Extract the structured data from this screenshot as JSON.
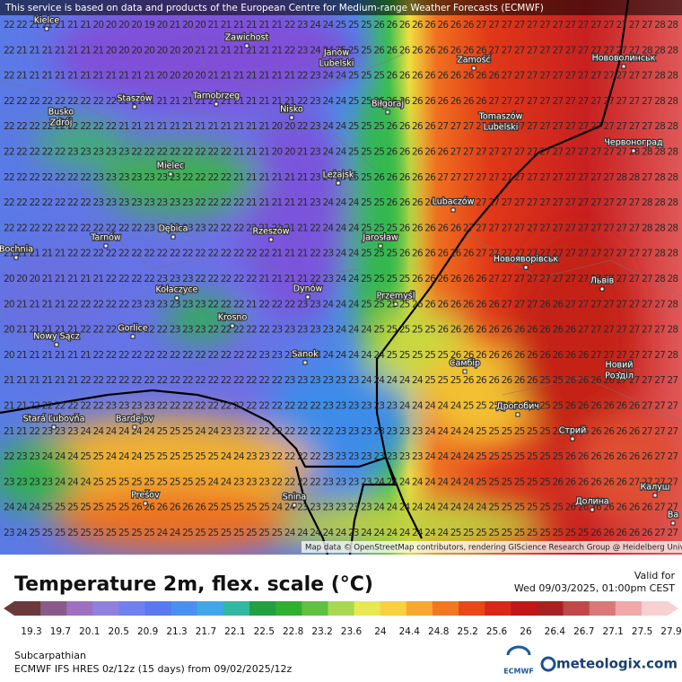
{
  "header": {
    "notice": "This service is based on data and products of the European Centre for Medium-range Weather Forecasts (ECMWF)"
  },
  "grid": {
    "rows": [
      "22 22 21 21 21 21 21 20 20 20 20 19 20 21 20 20 21 21 21 21 21 21 22 23 24 24 25 25 25 26 26 26 26 26 26 26 26 27 27 27 27 27 27 27 27 27 27 27 27 27 27 28 28",
      "22 21 21 21 21 21 21 21 20 20 20 20 20 20 20 21 21 21 21 21 21 21 22 23 24 24 25 25 25 26 26 26 26 26 26 26 26 26 27 27 27 27 27 27 27 27 27 27 27 27 28 28 28",
      "22 21 21 21 21 21 21 21 21 21 21 21 20 20 20 20 21 21 21 21 21 21 21 22 23 24 24 25 25 25 26 26 26 26 26 26 26 26 26 27 27 27 27 27 27 27 27 27 27 27 27 28 28",
      "22 22 22 22 22 22 22 22 22 22 21 21 21 21 21 21 21 21 21 21 21 21 21 22 23 24 24 25 25 26 26 26 26 26 26 26 26 26 27 27 27 27 27 27 27 27 27 27 27 27 27 28 28",
      "22 22 22 22 22 22 22 22 22 21 21 21 21 21 21 21 21 21 21 21 21 20 20 22 23 24 24 25 25 25 26 26 26 26 27 27 27 27 27 27 27 27 27 27 27 27 27 27 27 27 27 28 28",
      "22 22 22 22 22 23 23 23 23 23 22 22 22 22 22 22 22 22 21 21 21 20 20 21 23 24 24 25 25 25 26 26 26 26 26 27 27 27 27 27 27 27 27 27 27 27 27 27 27 28 28 28 28",
      "22 22 22 22 22 22 22 23 23 23 23 23 23 23 22 22 22 22 21 21 21 21 21 21 23 24 24 25 25 26 26 26 26 26 27 27 27 27 27 27 27 27 27 27 27 27 27 27 28 28 27 28 28",
      "22 22 22 22 22 22 22 23 23 23 23 23 23 23 23 22 22 22 22 21 21 21 21 21 23 24 24 24 25 25 26 26 26 26 26 27 27 27 27 27 27 27 27 27 27 27 27 27 27 27 28 28 28",
      "22 22 22 22 22 22 22 22 22 22 22 23 23 23 23 23 22 22 22 22 21 21 21 21 22 24 24 24 25 25 25 26 26 26 26 26 27 27 27 27 27 27 27 27 27 27 27 27 27 27 28 28 28",
      "21 21 21 21 21 22 22 22 22 22 22 22 22 22 22 22 22 22 22 22 22 21 21 21 22 23 24 24 25 25 25 26 26 26 26 26 26 27 27 27 27 27 27 27 27 27 27 27 27 27 27 28 28",
      "20 20 20 21 21 21 21 21 22 22 22 22 23 23 23 22 22 22 22 22 21 21 21 21 22 23 24 24 25 25 25 25 26 26 26 26 26 26 27 27 27 27 27 27 27 27 27 27 27 27 27 28 28",
      "20 21 21 21 21 22 22 22 22 22 23 23 23 23 23 23 22 22 22 21 22 22 22 23 23 24 24 24 25 25 25 25 26 26 26 26 26 26 26 27 27 27 26 26 27 27 27 27 27 27 27 27 28",
      "20 21 21 21 21 21 22 22 22 22 22 22 22 23 23 23 22 22 22 22 22 23 23 23 23 23 24 24 24 25 25 25 25 25 26 26 26 26 26 26 26 26 26 26 26 27 27 27 27 27 27 27 28",
      "20 21 21 21 21 21 21 22 22 22 22 22 22 22 22 22 22 22 22 22 23 23 23 23 23 24 24 24 24 24 25 25 25 25 25 26 26 26 26 26 26 26 26 26 26 26 27 27 27 27 27 27 28",
      "21 21 21 21 21 21 22 22 22 22 22 22 22 22 22 22 22 22 22 22 22 22 23 23 23 23 23 23 24 24 24 24 24 25 25 25 26 26 26 26 26 26 25 25 26 26 26 26 27 27 27 27 27",
      "21 21 22 22 22 22 22 22 23 23 23 23 22 22 22 22 22 22 22 22 22 22 22 22 22 23 23 23 23 23 23 24 24 24 24 24 25 25 25 25 26 26 25 25 26 26 26 26 26 26 27 27 27",
      "21 21 22 23 23 23 24 24 24 24 24 24 25 25 25 24 24 23 23 22 22 22 22 22 22 22 23 23 23 23 23 23 23 24 24 24 24 25 25 25 25 25 25 25 25 26 26 26 26 26 27 27 27",
      "22 23 23 24 24 24 25 25 24 24 24 25 25 25 25 25 25 24 24 23 23 22 22 22 22 23 23 23 23 23 23 23 23 24 24 24 24 25 25 25 25 25 25 25 26 26 26 26 26 26 26 27 27",
      "23 23 23 23 24 24 24 25 25 25 25 25 25 25 25 25 24 24 23 23 23 22 22 22 22 23 23 23 23 24 24 24 24 24 24 24 24 25 25 25 25 25 25 26 26 26 26 26 26 27 27 27 27",
      "24 24 24 25 25 25 25 25 25 25 26 26 26 26 26 26 25 25 25 25 25 24 24 23 23 23 23 23 23 24 24 24 24 24 24 24 24 24 25 25 25 25 25 25 26 26 26 26 26 26 26 27 27",
      "23 24 25 25 25 25 25 25 25 25 25 25 24 24 25 25 25 25 25 25 25 25 24 24 24 24 24 23 24 24 24 24 24 24 24 25 25 25 25 25 25 25 25 25 25 25 26 26 26 26 26 27 27"
    ]
  },
  "cities": [
    {
      "lines": [
        "Kielce"
      ]
    },
    {
      "lines": [
        "Zawichost"
      ]
    },
    {
      "lines": [
        "Janów",
        "Lubelski"
      ]
    },
    {
      "lines": [
        "Zamość"
      ]
    },
    {
      "lines": [
        "Нововолинськ"
      ]
    },
    {
      "lines": [
        "Tarnobrzeg"
      ]
    },
    {
      "lines": [
        "Staszów"
      ]
    },
    {
      "lines": [
        "Nisko"
      ]
    },
    {
      "lines": [
        "Biłgoraj"
      ]
    },
    {
      "lines": [
        "Busko",
        "Zdrój"
      ]
    },
    {
      "lines": [
        "Tomaszów",
        "Lubelski"
      ]
    },
    {
      "lines": [
        "Червоноград"
      ]
    },
    {
      "lines": [
        "Mielec"
      ]
    },
    {
      "lines": [
        "Leżajsk"
      ]
    },
    {
      "lines": [
        "Lubaczów"
      ]
    },
    {
      "lines": [
        "Dębica"
      ]
    },
    {
      "lines": [
        "Rzeszów"
      ]
    },
    {
      "lines": [
        "Tarnów"
      ]
    },
    {
      "lines": [
        "Jarosław"
      ]
    },
    {
      "lines": [
        "Bochnia"
      ]
    },
    {
      "lines": [
        "Новояворівськ"
      ]
    },
    {
      "lines": [
        "Львів"
      ]
    },
    {
      "lines": [
        "Kołaczyce"
      ]
    },
    {
      "lines": [
        "Dynów"
      ]
    },
    {
      "lines": [
        "Przemyśl"
      ]
    },
    {
      "lines": [
        "Krosno"
      ]
    },
    {
      "lines": [
        "Gorlice"
      ]
    },
    {
      "lines": [
        "Nowy Sącz"
      ]
    },
    {
      "lines": [
        "Sanok"
      ]
    },
    {
      "lines": [
        "Самбір"
      ]
    },
    {
      "lines": [
        "Новий",
        "Розділ"
      ]
    },
    {
      "lines": [
        "Дрогобич"
      ]
    },
    {
      "lines": [
        "Stará Ľubovňa"
      ]
    },
    {
      "lines": [
        "Bardejov"
      ]
    },
    {
      "lines": [
        "Стрий"
      ]
    },
    {
      "lines": [
        "Prešov"
      ]
    },
    {
      "lines": [
        "Snina"
      ]
    },
    {
      "lines": [
        "Долина"
      ]
    },
    {
      "lines": [
        "Калуш"
      ]
    },
    {
      "lines": [
        "Ва"
      ]
    }
  ],
  "attribution": "Map data © OpenStreetMap contributors, rendering GIScience Research Group @ Heidelberg University",
  "footer": {
    "title": "Temperature 2m, flex. scale (°C)",
    "valid_label": "Valid for",
    "valid_time": "Wed 09/03/2025, 01:00pm CEST",
    "scale_ticks": [
      "19.3",
      "19.7",
      "20.1",
      "20.5",
      "20.9",
      "21.3",
      "21.7",
      "22.1",
      "22.5",
      "22.8",
      "23.2",
      "23.6",
      "24",
      "24.4",
      "24.8",
      "25.2",
      "25.6",
      "26",
      "26.4",
      "26.7",
      "27.1",
      "27.5",
      "27.9"
    ],
    "region": "Subcarpathian",
    "model": "ECMWF IFS HRES 0z/12z (15 days) from 09/02/2025/12z",
    "ecmwf_logo": "ECMWF",
    "brand": "meteologix.com"
  }
}
